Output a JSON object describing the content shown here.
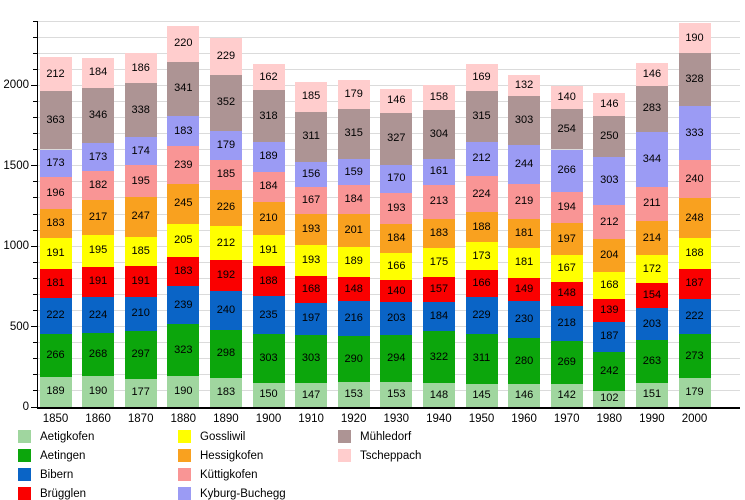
{
  "chart_data": {
    "type": "bar",
    "stacked": true,
    "title": "",
    "xlabel": "",
    "ylabel": "",
    "grid": "horizontal",
    "legend_position": "bottom",
    "categories": [
      "1850",
      "1860",
      "1870",
      "1880",
      "1890",
      "1900",
      "1910",
      "1920",
      "1930",
      "1940",
      "1950",
      "1960",
      "1970",
      "1980",
      "1990",
      "2000"
    ],
    "series": [
      {
        "name": "Aetigkofen",
        "color": "#A0D69F",
        "values": [
          189,
          190,
          177,
          190,
          183,
          150,
          147,
          153,
          153,
          148,
          145,
          146,
          142,
          102,
          151,
          179
        ]
      },
      {
        "name": "Aetingen",
        "color": "#0CA60C",
        "values": [
          266,
          268,
          297,
          323,
          298,
          303,
          303,
          290,
          294,
          322,
          311,
          280,
          269,
          242,
          263,
          273
        ]
      },
      {
        "name": "Bibern",
        "color": "#0A64C6",
        "values": [
          222,
          224,
          210,
          239,
          240,
          235,
          197,
          216,
          203,
          184,
          229,
          230,
          218,
          187,
          203,
          222
        ]
      },
      {
        "name": "Brügglen",
        "color": "#FA0000",
        "values": [
          181,
          191,
          191,
          183,
          192,
          188,
          168,
          148,
          140,
          157,
          166,
          149,
          148,
          139,
          154,
          187
        ]
      },
      {
        "name": "Gossliwil",
        "color": "#FFFF00",
        "values": [
          191,
          195,
          185,
          205,
          212,
          191,
          193,
          189,
          166,
          175,
          173,
          181,
          167,
          168,
          172,
          188
        ]
      },
      {
        "name": "Hessigkofen",
        "color": "#F9A11F",
        "values": [
          183,
          217,
          247,
          245,
          226,
          210,
          193,
          201,
          184,
          183,
          188,
          181,
          197,
          204,
          214,
          248
        ]
      },
      {
        "name": "Küttigkofen",
        "color": "#F99595",
        "values": [
          196,
          182,
          195,
          239,
          185,
          184,
          167,
          184,
          193,
          213,
          224,
          219,
          194,
          212,
          211,
          240
        ]
      },
      {
        "name": "Kyburg-Buchegg",
        "color": "#9B9BF4",
        "values": [
          173,
          173,
          174,
          183,
          179,
          189,
          156,
          159,
          170,
          161,
          212,
          244,
          266,
          303,
          344,
          333
        ]
      },
      {
        "name": "Mühledorf",
        "color": "#AD9494",
        "values": [
          363,
          346,
          338,
          341,
          352,
          318,
          311,
          315,
          327,
          304,
          315,
          303,
          254,
          250,
          283,
          328
        ]
      },
      {
        "name": "Tscheppach",
        "color": "#FFCDCD",
        "values": [
          212,
          184,
          186,
          220,
          229,
          162,
          185,
          179,
          146,
          158,
          169,
          132,
          140,
          146,
          146,
          190
        ]
      }
    ],
    "y_axis": {
      "min": 0,
      "max": 2400,
      "minor_step": 100,
      "major_step": 500,
      "tick_labels": [
        0,
        500,
        1000,
        1500,
        2000
      ]
    },
    "legend_columns": [
      [
        "Aetigkofen",
        "Aetingen",
        "Bibern",
        "Brügglen"
      ],
      [
        "Gossliwil",
        "Hessigkofen",
        "Küttigkofen",
        "Kyburg-Buchegg"
      ],
      [
        "Mühledorf",
        "Tscheppach"
      ]
    ]
  }
}
